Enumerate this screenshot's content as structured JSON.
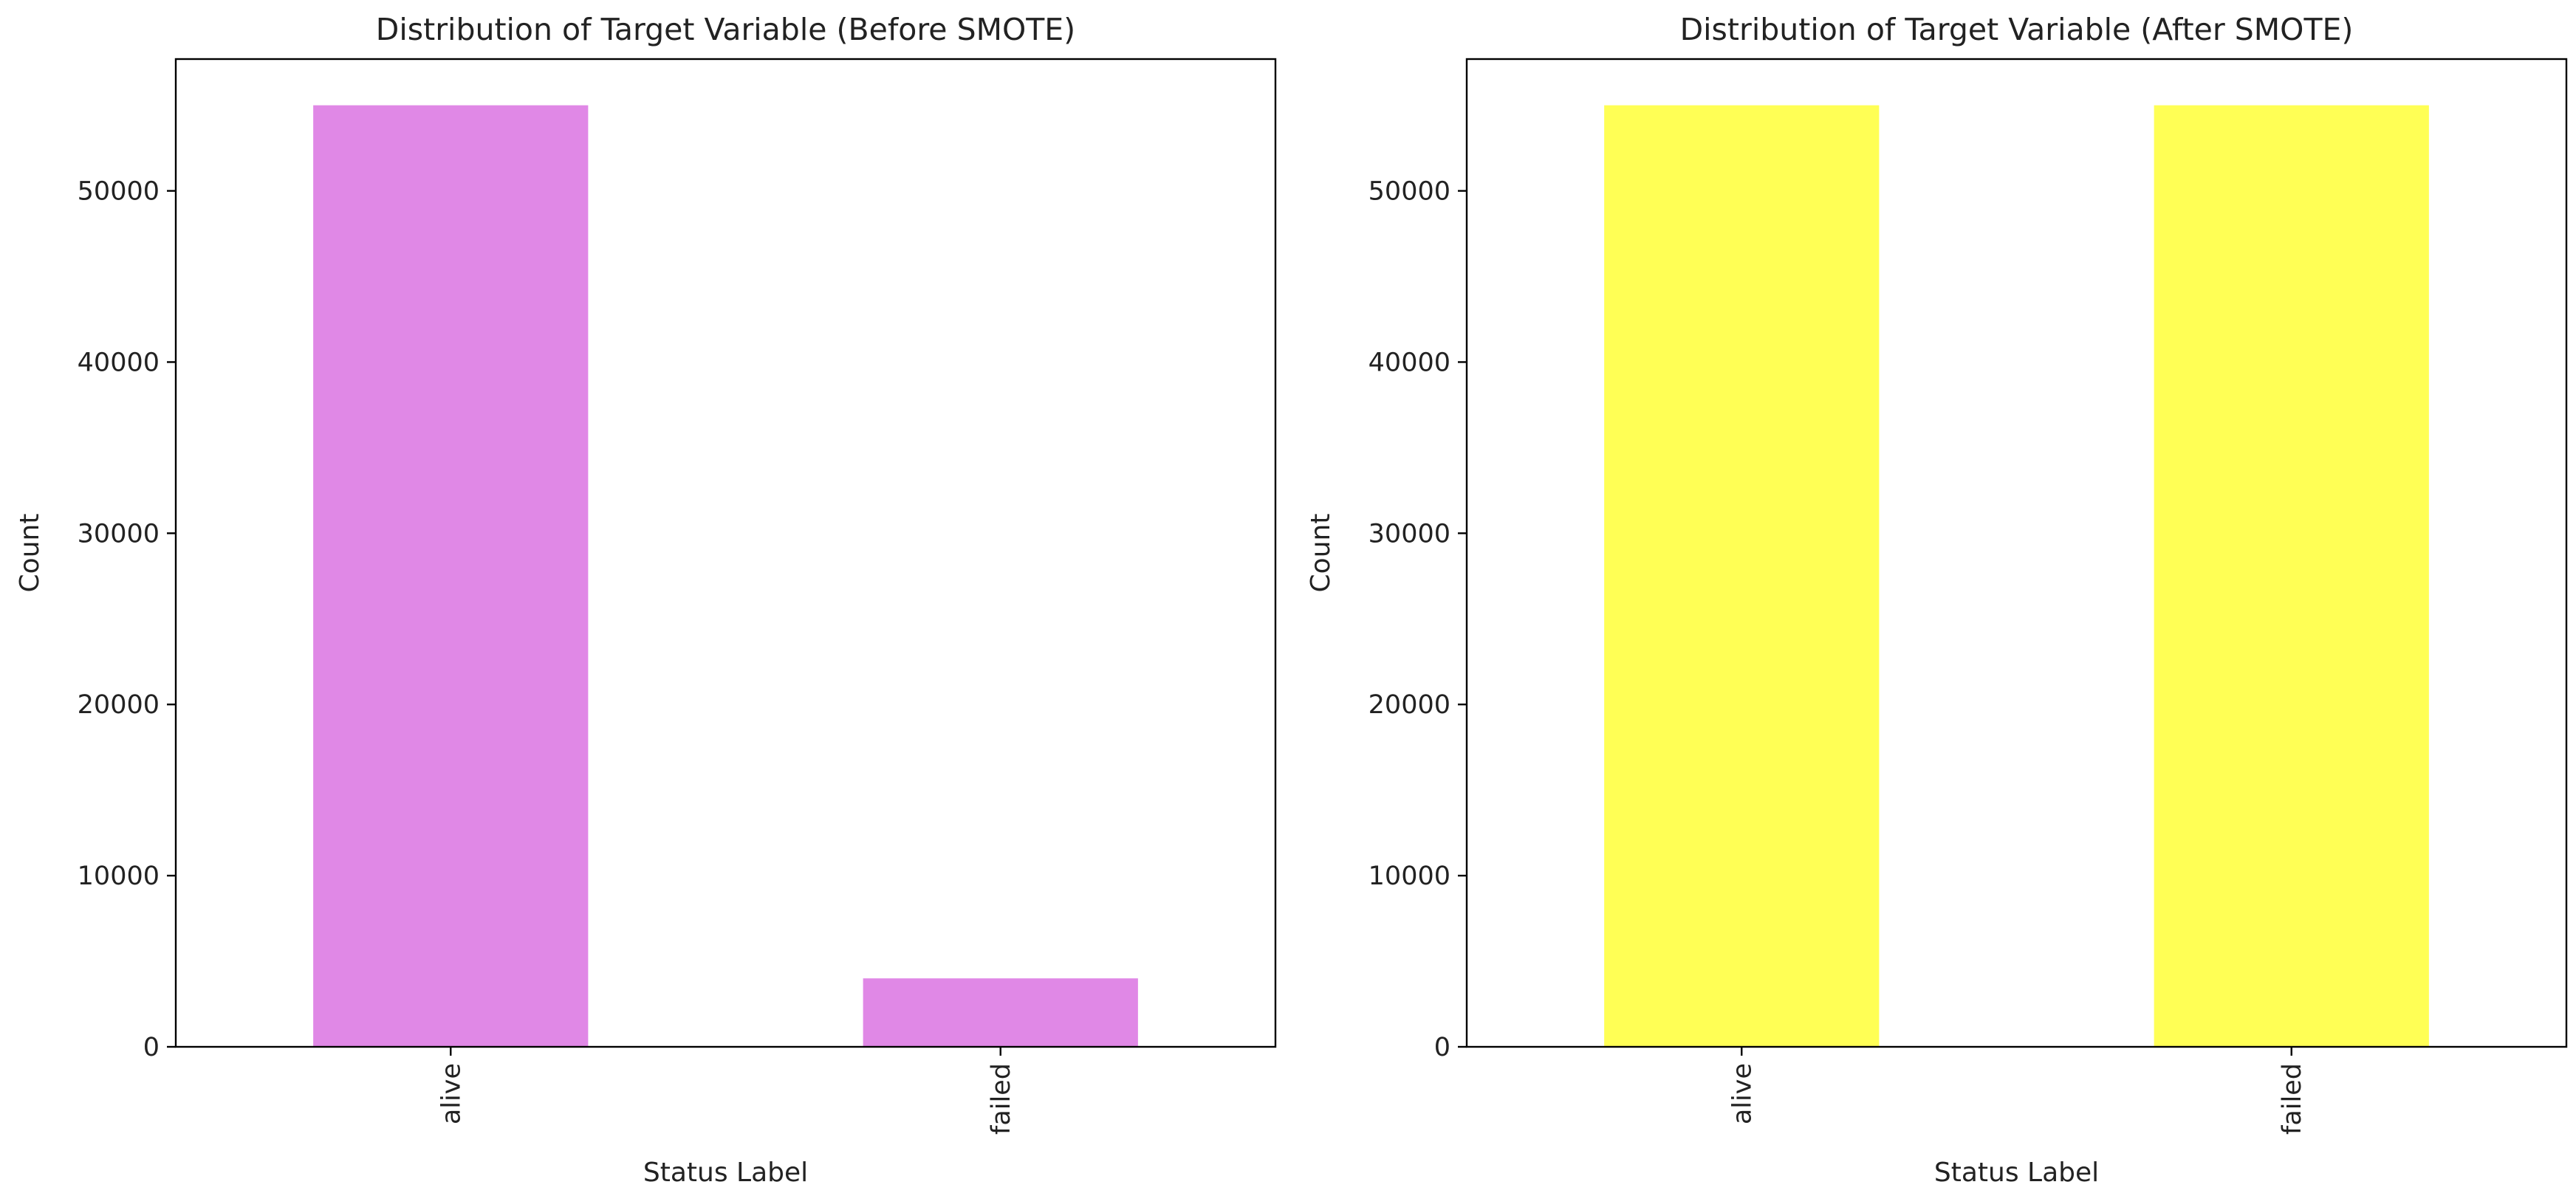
{
  "colors": {
    "before_bar": "#e088e6",
    "after_bar": "#ffff55",
    "axis": "#000000",
    "text": "#222222"
  },
  "chart_data": [
    {
      "type": "bar",
      "title": "Distribution of Target Variable (Before SMOTE)",
      "xlabel": "Status Label",
      "ylabel": "Count",
      "categories": [
        "alive",
        "failed"
      ],
      "values": [
        55000,
        4000
      ],
      "ylim": [
        0,
        57700
      ],
      "yticks": [
        0,
        10000,
        20000,
        30000,
        40000,
        50000
      ],
      "color": "#e088e6",
      "grid": false,
      "legend": "none"
    },
    {
      "type": "bar",
      "title": "Distribution of Target Variable (After SMOTE)",
      "xlabel": "Status Label",
      "ylabel": "Count",
      "categories": [
        "alive",
        "failed"
      ],
      "values": [
        55000,
        55000
      ],
      "ylim": [
        0,
        57700
      ],
      "yticks": [
        0,
        10000,
        20000,
        30000,
        40000,
        50000
      ],
      "color": "#ffff55",
      "grid": false,
      "legend": "none"
    }
  ]
}
